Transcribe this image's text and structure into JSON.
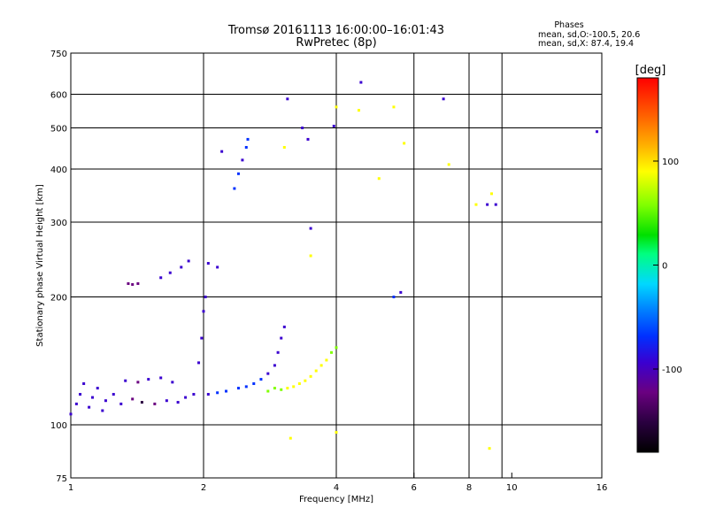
{
  "header": {
    "title_line1": "Tromsø 20161113 16:00:00–16:01:43",
    "title_line2": "RwPretec (8p)"
  },
  "stats": {
    "heading": "Phases",
    "line_o": "mean, sd,O:-100.5, 20.6",
    "line_x": "mean, sd,X:  87.4, 19.4"
  },
  "colors": {
    "colormap": [
      "#000000",
      "#2a0040",
      "#6a0080",
      "#3a00d0",
      "#0030ff",
      "#0080ff",
      "#00d8ff",
      "#00ff80",
      "#00e000",
      "#80ff00",
      "#ffff00",
      "#ffb000",
      "#ff6000",
      "#ff0000"
    ]
  },
  "chart_data": {
    "type": "scatter",
    "title": "Tromsø 20161113 16:00:00–16:01:43",
    "subtitle": "RwPretec (8p)",
    "xlabel": "Frequency [MHz]",
    "ylabel": "Stationary phase Virtual Height [km]",
    "x_scale": "log",
    "y_scale": "log",
    "xlim": [
      1,
      16
    ],
    "ylim": [
      75,
      750
    ],
    "x_ticks": [
      1,
      2,
      4,
      6,
      8,
      10,
      16
    ],
    "x_tick_labels": [
      "1",
      "2",
      "4",
      "6",
      "8",
      "10",
      "16"
    ],
    "x_grid_lines": [
      2,
      4,
      6,
      8,
      9.5
    ],
    "y_ticks": [
      75,
      100,
      200,
      300,
      400,
      500,
      600,
      750
    ],
    "y_tick_labels": [
      "75",
      "100",
      "200",
      "300",
      "400",
      "500",
      "600",
      "750"
    ],
    "y_grid_lines": [
      100,
      200,
      300,
      400,
      500,
      600
    ],
    "grid": true,
    "colorbar": {
      "label": "[deg]",
      "range": [
        -180,
        180
      ],
      "tick_values": [
        100,
        0,
        -100
      ],
      "tick_labels": [
        "100",
        "0",
        "-100"
      ]
    },
    "series_O_mode": [
      {
        "x": 1.0,
        "y": 106,
        "phase": -95
      },
      {
        "x": 1.03,
        "y": 112,
        "phase": -100
      },
      {
        "x": 1.05,
        "y": 118,
        "phase": -90
      },
      {
        "x": 1.07,
        "y": 125,
        "phase": -92
      },
      {
        "x": 1.1,
        "y": 110,
        "phase": -98
      },
      {
        "x": 1.12,
        "y": 116,
        "phase": -88
      },
      {
        "x": 1.15,
        "y": 122,
        "phase": -105
      },
      {
        "x": 1.18,
        "y": 108,
        "phase": -95
      },
      {
        "x": 1.2,
        "y": 114,
        "phase": -100
      },
      {
        "x": 1.25,
        "y": 118,
        "phase": -93
      },
      {
        "x": 1.3,
        "y": 112,
        "phase": -110
      },
      {
        "x": 1.33,
        "y": 127,
        "phase": -96
      },
      {
        "x": 1.38,
        "y": 115,
        "phase": -130
      },
      {
        "x": 1.42,
        "y": 126,
        "phase": -120
      },
      {
        "x": 1.45,
        "y": 113,
        "phase": -140
      },
      {
        "x": 1.5,
        "y": 128,
        "phase": -110
      },
      {
        "x": 1.55,
        "y": 112,
        "phase": -120
      },
      {
        "x": 1.6,
        "y": 129,
        "phase": -95
      },
      {
        "x": 1.65,
        "y": 114,
        "phase": -100
      },
      {
        "x": 1.7,
        "y": 126,
        "phase": -90
      },
      {
        "x": 1.75,
        "y": 113,
        "phase": -98
      },
      {
        "x": 1.82,
        "y": 116,
        "phase": -92
      },
      {
        "x": 1.9,
        "y": 118,
        "phase": -95
      },
      {
        "x": 1.95,
        "y": 140,
        "phase": -85
      },
      {
        "x": 1.98,
        "y": 160,
        "phase": -90
      },
      {
        "x": 2.0,
        "y": 185,
        "phase": -95
      },
      {
        "x": 2.02,
        "y": 200,
        "phase": -92
      },
      {
        "x": 2.05,
        "y": 118,
        "phase": -88
      },
      {
        "x": 2.15,
        "y": 119,
        "phase": -80
      },
      {
        "x": 2.25,
        "y": 120,
        "phase": -75
      },
      {
        "x": 2.4,
        "y": 122,
        "phase": -70
      },
      {
        "x": 2.5,
        "y": 123,
        "phase": -65
      },
      {
        "x": 2.6,
        "y": 125,
        "phase": -70
      },
      {
        "x": 2.7,
        "y": 128,
        "phase": -80
      },
      {
        "x": 2.8,
        "y": 132,
        "phase": -85
      },
      {
        "x": 2.9,
        "y": 138,
        "phase": -90
      },
      {
        "x": 2.95,
        "y": 148,
        "phase": -95
      },
      {
        "x": 3.0,
        "y": 160,
        "phase": -90
      },
      {
        "x": 3.05,
        "y": 170,
        "phase": -92
      },
      {
        "x": 1.35,
        "y": 215,
        "phase": -130
      },
      {
        "x": 1.38,
        "y": 214,
        "phase": -125
      },
      {
        "x": 1.42,
        "y": 215,
        "phase": -120
      },
      {
        "x": 1.6,
        "y": 222,
        "phase": -100
      },
      {
        "x": 1.68,
        "y": 228,
        "phase": -100
      },
      {
        "x": 1.78,
        "y": 235,
        "phase": -95
      },
      {
        "x": 1.85,
        "y": 243,
        "phase": -90
      },
      {
        "x": 2.05,
        "y": 240,
        "phase": -100
      },
      {
        "x": 2.15,
        "y": 235,
        "phase": -90
      },
      {
        "x": 2.2,
        "y": 440,
        "phase": -100
      },
      {
        "x": 2.35,
        "y": 360,
        "phase": -60
      },
      {
        "x": 2.4,
        "y": 390,
        "phase": -80
      },
      {
        "x": 2.45,
        "y": 420,
        "phase": -90
      },
      {
        "x": 2.5,
        "y": 450,
        "phase": -75
      },
      {
        "x": 2.52,
        "y": 470,
        "phase": -60
      },
      {
        "x": 3.1,
        "y": 585,
        "phase": -100
      },
      {
        "x": 3.35,
        "y": 500,
        "phase": -100
      },
      {
        "x": 3.45,
        "y": 470,
        "phase": -110
      },
      {
        "x": 3.5,
        "y": 290,
        "phase": -95
      },
      {
        "x": 3.95,
        "y": 505,
        "phase": -100
      },
      {
        "x": 4.55,
        "y": 640,
        "phase": -110
      },
      {
        "x": 5.4,
        "y": 200,
        "phase": -70
      },
      {
        "x": 5.6,
        "y": 205,
        "phase": -90
      },
      {
        "x": 7.0,
        "y": 585,
        "phase": -100
      },
      {
        "x": 8.8,
        "y": 330,
        "phase": -100
      },
      {
        "x": 9.2,
        "y": 330,
        "phase": -110
      },
      {
        "x": 15.6,
        "y": 490,
        "phase": -110
      }
    ],
    "series_X_mode": [
      {
        "x": 2.8,
        "y": 120,
        "phase": 60
      },
      {
        "x": 2.9,
        "y": 122,
        "phase": 70
      },
      {
        "x": 3.0,
        "y": 121,
        "phase": 80
      },
      {
        "x": 3.1,
        "y": 122,
        "phase": 85
      },
      {
        "x": 3.2,
        "y": 123,
        "phase": 90
      },
      {
        "x": 3.3,
        "y": 125,
        "phase": 88
      },
      {
        "x": 3.4,
        "y": 127,
        "phase": 92
      },
      {
        "x": 3.5,
        "y": 130,
        "phase": 95
      },
      {
        "x": 3.6,
        "y": 134,
        "phase": 90
      },
      {
        "x": 3.7,
        "y": 138,
        "phase": 88
      },
      {
        "x": 3.8,
        "y": 142,
        "phase": 85
      },
      {
        "x": 3.9,
        "y": 148,
        "phase": 80
      },
      {
        "x": 4.0,
        "y": 152,
        "phase": 75
      },
      {
        "x": 3.05,
        "y": 450,
        "phase": 90
      },
      {
        "x": 4.0,
        "y": 560,
        "phase": 100
      },
      {
        "x": 4.5,
        "y": 550,
        "phase": 95
      },
      {
        "x": 5.0,
        "y": 380,
        "phase": 100
      },
      {
        "x": 5.4,
        "y": 560,
        "phase": 100
      },
      {
        "x": 5.7,
        "y": 460,
        "phase": 100
      },
      {
        "x": 7.2,
        "y": 410,
        "phase": 100
      },
      {
        "x": 8.3,
        "y": 330,
        "phase": 110
      },
      {
        "x": 9.0,
        "y": 350,
        "phase": 100
      },
      {
        "x": 8.9,
        "y": 88,
        "phase": 100
      },
      {
        "x": 3.15,
        "y": 93,
        "phase": 90
      },
      {
        "x": 4.0,
        "y": 96,
        "phase": 100
      },
      {
        "x": 3.5,
        "y": 250,
        "phase": 110
      }
    ]
  }
}
